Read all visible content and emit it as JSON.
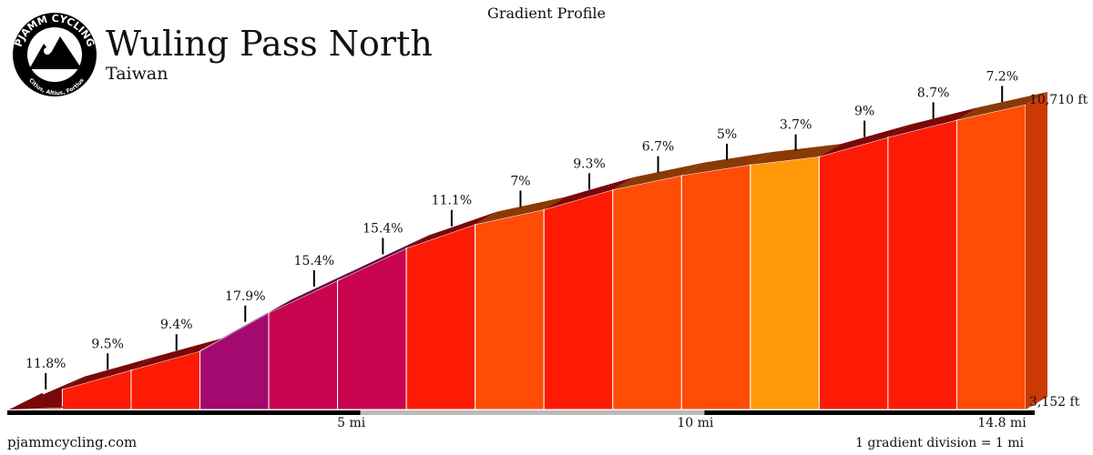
{
  "header": {
    "chart_kind": "Gradient Profile",
    "climb_name": "Wuling Pass North",
    "region": "Taiwan"
  },
  "logo": {
    "brand": "PJAMM CYCLING",
    "motto": "Citius, Altius, Fortius"
  },
  "footer": {
    "site": "pjammcycling.com",
    "division_note": "1 gradient division = 1 mi"
  },
  "colors": {
    "g_extreme": "#a3096e",
    "g_very_steep": "#c8044e",
    "g_steep": "#fd1b05",
    "g_hard": "#ff4c06",
    "g_moderate": "#ff990a",
    "top_band_dark": "#7a0808",
    "top_band_purple": "#5e083e",
    "top_band_orange": "#8b3a05"
  },
  "chart_data": {
    "type": "area",
    "title": "Gradient Profile",
    "x_unit": "mi",
    "y_unit": "ft",
    "distance_total_mi": 14.8,
    "elevation_start_ft": 3152,
    "elevation_end_ft": 10710,
    "x_tick_labels": [
      "5 mi",
      "10 mi",
      "14.8 mi"
    ],
    "x_ticks": [
      5,
      10,
      14.8
    ],
    "y_labels": [
      "3,152 ft",
      "10,710 ft"
    ],
    "segments": [
      {
        "start_mi": 0.0,
        "end_mi": 0.8,
        "gradient_label": "11.8%",
        "color": "#fd1b05"
      },
      {
        "start_mi": 0.8,
        "end_mi": 1.8,
        "gradient_label": "9.5%",
        "color": "#fd1b05"
      },
      {
        "start_mi": 1.8,
        "end_mi": 2.8,
        "gradient_label": "9.4%",
        "color": "#fd1b05"
      },
      {
        "start_mi": 2.8,
        "end_mi": 3.8,
        "gradient_label": "17.9%",
        "color": "#a3096e"
      },
      {
        "start_mi": 3.8,
        "end_mi": 4.8,
        "gradient_label": "15.4%",
        "color": "#c8044e"
      },
      {
        "start_mi": 4.8,
        "end_mi": 5.8,
        "gradient_label": "15.4%",
        "color": "#c8044e"
      },
      {
        "start_mi": 5.8,
        "end_mi": 6.8,
        "gradient_label": "11.1%",
        "color": "#fd1b05"
      },
      {
        "start_mi": 6.8,
        "end_mi": 7.8,
        "gradient_label": "7%",
        "color": "#ff4c06"
      },
      {
        "start_mi": 7.8,
        "end_mi": 8.8,
        "gradient_label": "9.3%",
        "color": "#fd1b05"
      },
      {
        "start_mi": 8.8,
        "end_mi": 9.8,
        "gradient_label": "6.7%",
        "color": "#ff4c06"
      },
      {
        "start_mi": 9.8,
        "end_mi": 10.8,
        "gradient_label": "5%",
        "color": "#ff4c06"
      },
      {
        "start_mi": 10.8,
        "end_mi": 11.8,
        "gradient_label": "3.7%",
        "color": "#ff990a"
      },
      {
        "start_mi": 11.8,
        "end_mi": 12.8,
        "gradient_label": "9%",
        "color": "#fd1b05"
      },
      {
        "start_mi": 12.8,
        "end_mi": 13.8,
        "gradient_label": "8.7%",
        "color": "#fd1b05"
      },
      {
        "start_mi": 13.8,
        "end_mi": 14.8,
        "gradient_label": "7.2%",
        "color": "#ff4c06"
      }
    ],
    "elevation_points_ft": [
      3152,
      3650,
      4130,
      4600,
      5550,
      6350,
      7150,
      7740,
      8110,
      8600,
      8955,
      9220,
      9420,
      9900,
      10330,
      10710
    ]
  }
}
